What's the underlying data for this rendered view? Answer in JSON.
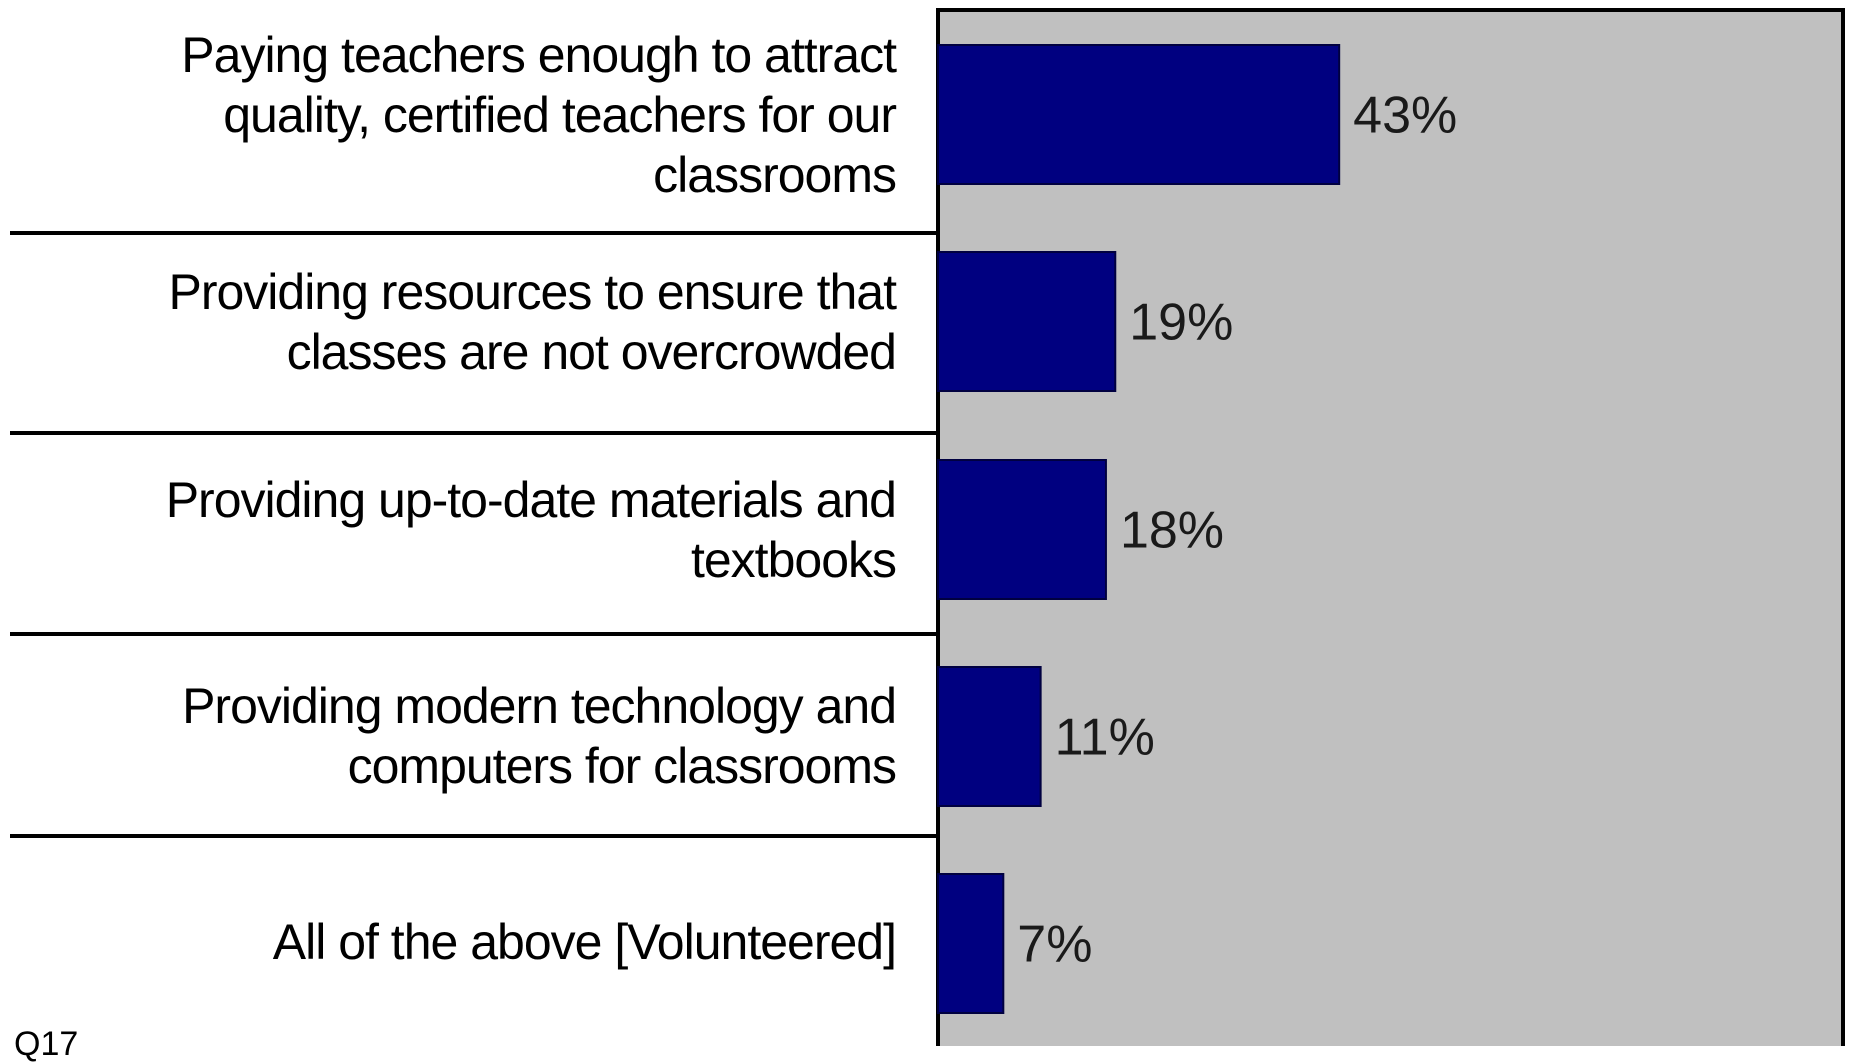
{
  "chart_data": {
    "type": "bar",
    "orientation": "horizontal",
    "categories": [
      "Paying teachers enough to attract quality, certified teachers for our classrooms",
      "Providing resources to ensure that classes are not overcrowded",
      "Providing up-to-date materials and textbooks",
      "Providing modern technology and computers for classrooms",
      "All of the above [Volunteered]"
    ],
    "category_lines": [
      [
        "Paying teachers enough to attract",
        "quality, certified teachers for our",
        "classrooms"
      ],
      [
        "Providing resources to ensure that",
        "classes are not overcrowded"
      ],
      [
        "Providing up-to-date materials and",
        "textbooks"
      ],
      [
        "Providing modern technology and",
        "computers for classrooms"
      ],
      [
        "All of the above [Volunteered]"
      ]
    ],
    "values": [
      43,
      19,
      18,
      11,
      7
    ],
    "value_labels": [
      "43%",
      "19%",
      "18%",
      "11%",
      "7%"
    ],
    "xlim": [
      0,
      97
    ],
    "grid": false,
    "colors": {
      "bar": "#000080",
      "plot_background": "#c0c0c0",
      "frame": "#000000",
      "label_text": "#000000",
      "value_text": "#1a1a1a"
    }
  },
  "footnote": "Q17"
}
